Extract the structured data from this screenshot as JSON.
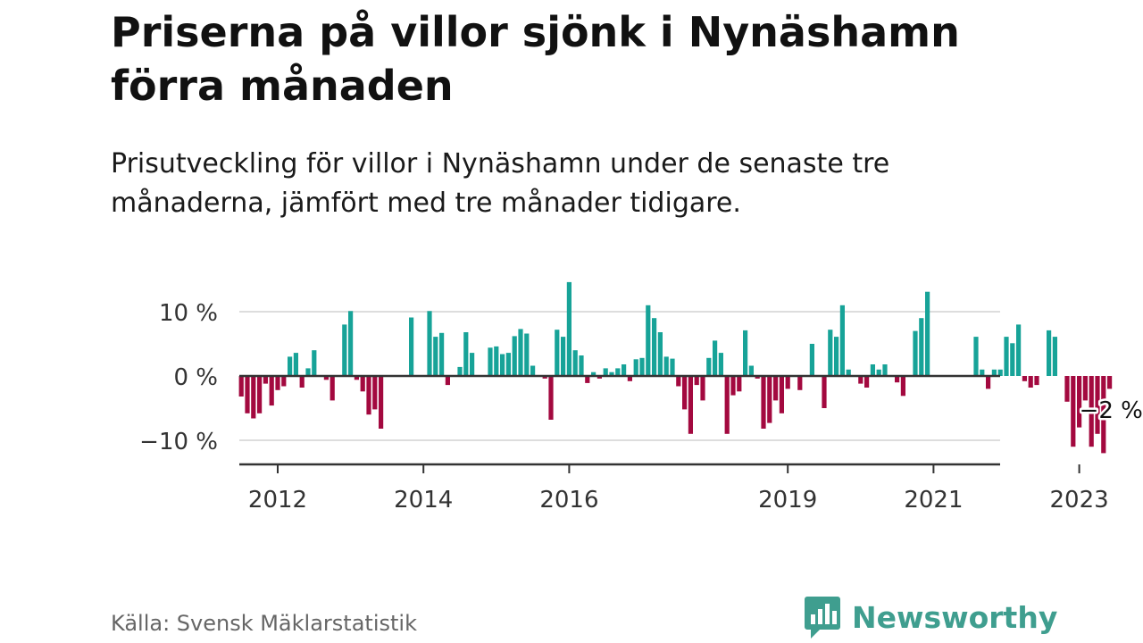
{
  "header": {
    "title": "Priserna på villor sjönk i Nynäshamn förra månaden",
    "subtitle": "Prisutveckling för villor i Nynäshamn under de senaste tre månaderna, jämfört med tre månader tidigare."
  },
  "footer": {
    "source": "Källa: Svensk Mäklarstatistik",
    "brand": "Newsworthy",
    "brand_icon": "newsworthy-logo-icon"
  },
  "colors": {
    "positive": "#17a398",
    "negative": "#a3093f",
    "axis": "#333333",
    "grid": "#dddddd",
    "brand": "#3f9e8f"
  },
  "chart_data": {
    "type": "bar",
    "title": "",
    "xlabel": "",
    "ylabel": "",
    "ylim": [
      -14,
      16
    ],
    "yticks": [
      10,
      0,
      -10
    ],
    "ytick_labels": [
      "10 %",
      "0 %",
      "−10 %"
    ],
    "xticks": [
      "2012",
      "2014",
      "2016",
      "2019",
      "2021",
      "2023"
    ],
    "x_start": "2011-07",
    "annotation": "−2 %",
    "grid": true,
    "values": [
      -3.2,
      -5.8,
      -6.6,
      -5.8,
      -1.2,
      -4.6,
      -2.2,
      -1.6,
      3.0,
      3.6,
      -1.8,
      1.2,
      4.0,
      0,
      -0.6,
      -3.8,
      0,
      8.0,
      10.1,
      -0.6,
      -2.4,
      -6.0,
      -5.2,
      -8.2,
      0,
      0,
      0,
      0,
      9.1,
      0,
      0,
      10.1,
      6.1,
      6.7,
      -1.4,
      0,
      1.4,
      6.8,
      3.6,
      0,
      0,
      4.4,
      4.6,
      3.4,
      3.6,
      6.2,
      7.3,
      6.6,
      1.6,
      0,
      -0.4,
      -6.8,
      7.2,
      6.1,
      14.6,
      4.0,
      3.2,
      -1.1,
      0.6,
      -0.4,
      1.2,
      0.6,
      1.2,
      1.8,
      -0.8,
      2.6,
      2.8,
      11.0,
      9.0,
      6.8,
      3.0,
      2.7,
      -1.6,
      -5.2,
      -9.0,
      -1.4,
      -3.8,
      2.8,
      5.5,
      3.6,
      -9.0,
      -3.0,
      -2.4,
      7.1,
      1.6,
      -0.4,
      -8.2,
      -7.3,
      -3.8,
      -5.8,
      -2.0,
      0,
      -2.2,
      0,
      5.0,
      0,
      -5.0,
      7.2,
      6.1,
      11.0,
      1.0,
      0,
      -1.2,
      -1.8,
      1.8,
      1.0,
      1.8,
      0,
      -1.0,
      -3.1,
      0,
      7.0,
      9.0,
      13.1,
      0,
      0,
      0,
      0,
      0,
      0,
      0,
      6.1,
      1.0,
      -2.0,
      1.0,
      1.0,
      6.1,
      5.1,
      8.0,
      -0.8,
      -1.8,
      -1.4,
      0,
      7.1,
      6.1,
      0,
      -4.0,
      -11.0,
      -8.0,
      -3.8,
      -11.0,
      -9.0,
      -12.0,
      -2.0
    ]
  }
}
